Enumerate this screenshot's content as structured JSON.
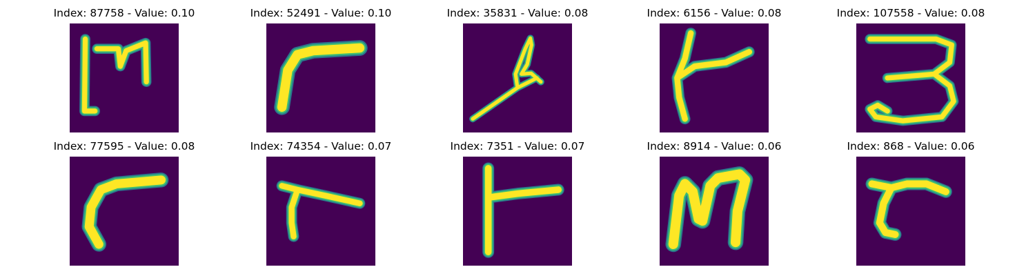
{
  "figure": {
    "background": "#ffffff",
    "image_bg_color": "#440154",
    "stroke_colors": {
      "core": "#fde725",
      "mid": "#3bbb75",
      "edge": "#2a788e"
    },
    "panels": [
      {
        "index": "87758",
        "value": "0.10",
        "title": "Index: 87758 - Value: 0.10"
      },
      {
        "index": "52491",
        "value": "0.10",
        "title": "Index: 52491 - Value: 0.10"
      },
      {
        "index": "35831",
        "value": "0.08",
        "title": "Index: 35831 - Value: 0.08"
      },
      {
        "index": "6156",
        "value": "0.08",
        "title": "Index: 6156 - Value: 0.08"
      },
      {
        "index": "107558",
        "value": "0.08",
        "title": "Index: 107558 - Value: 0.08"
      },
      {
        "index": "77595",
        "value": "0.08",
        "title": "Index: 77595 - Value: 0.08"
      },
      {
        "index": "74354",
        "value": "0.07",
        "title": "Index: 74354 - Value: 0.07"
      },
      {
        "index": "7351",
        "value": "0.07",
        "title": "Index: 7351 - Value: 0.07"
      },
      {
        "index": "8914",
        "value": "0.06",
        "title": "Index: 8914 - Value: 0.06"
      },
      {
        "index": "868",
        "value": "0.06",
        "title": "Index: 868 - Value: 0.06"
      }
    ]
  }
}
